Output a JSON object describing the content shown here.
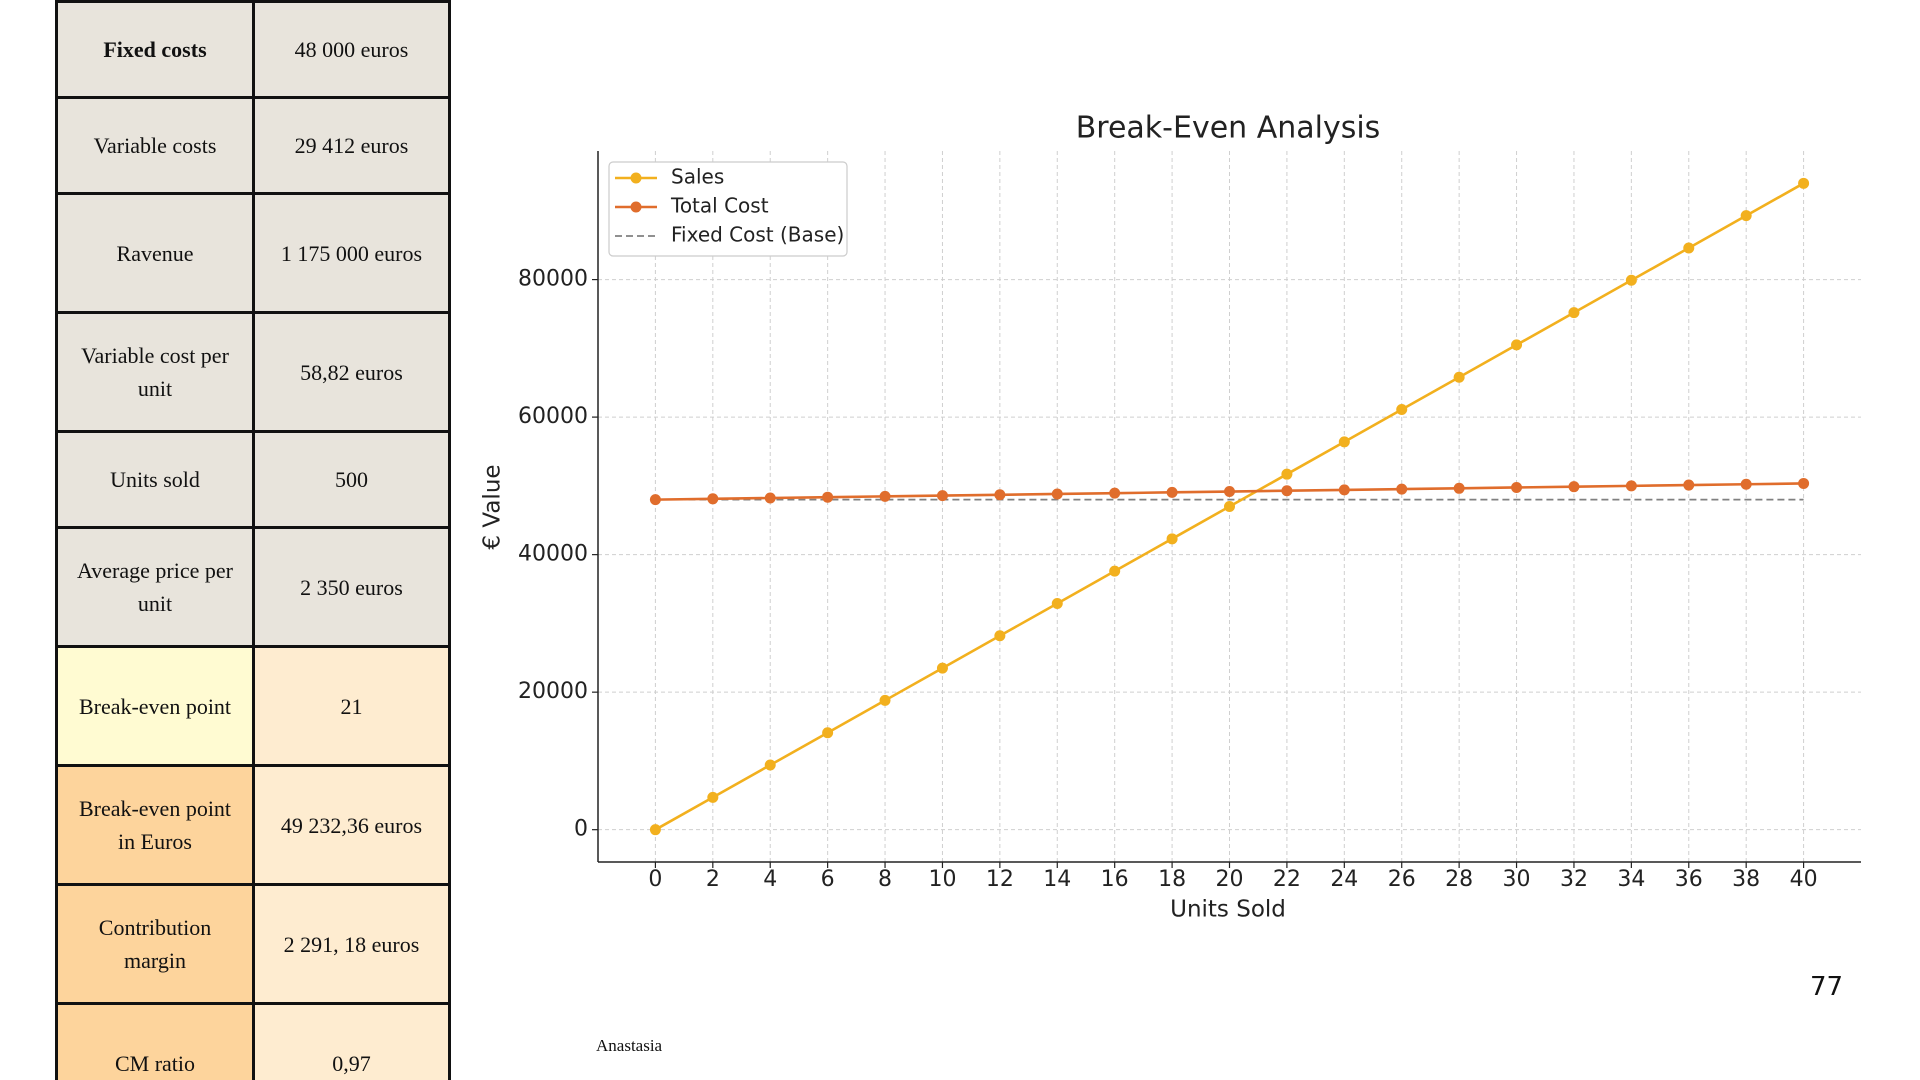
{
  "table": {
    "rows": [
      [
        "Fixed costs",
        "48 000 euros"
      ],
      [
        "Variable costs",
        "29 412 euros"
      ],
      [
        "Ravenue",
        "1 175 000 euros"
      ],
      [
        "Variable cost per unit",
        "58,82 euros"
      ],
      [
        "Units sold",
        "500"
      ],
      [
        "Average price per unit",
        "2 350 euros"
      ],
      [
        "Break-even point",
        "21"
      ],
      [
        "Break-even point in Euros",
        "49 232,36 euros"
      ],
      [
        "Contribution margin",
        "2 291, 18 euros"
      ],
      [
        "CM ratio",
        "0,97"
      ]
    ]
  },
  "chart_data": {
    "type": "line",
    "title": "Break-Even Analysis",
    "x_label": "Units Sold",
    "y_label": "€ Value",
    "x": [
      0,
      2,
      4,
      6,
      8,
      10,
      12,
      14,
      16,
      18,
      20,
      22,
      24,
      26,
      28,
      30,
      32,
      34,
      36,
      38,
      40
    ],
    "series": [
      {
        "name": "Sales",
        "color": "#f2b01e",
        "markers": true,
        "dashed": false,
        "values": [
          0,
          4700,
          9400,
          14100,
          18800,
          23500,
          28200,
          32900,
          37600,
          42300,
          47000,
          51700,
          56400,
          61100,
          65800,
          70500,
          75200,
          79900,
          84600,
          89300,
          94000
        ]
      },
      {
        "name": "Total Cost",
        "color": "#e06d2c",
        "markers": true,
        "dashed": false,
        "values": [
          48000,
          48118,
          48235,
          48353,
          48471,
          48588,
          48706,
          48823,
          48941,
          49059,
          49176,
          49294,
          49412,
          49529,
          49647,
          49765,
          49882,
          50000,
          50118,
          50235,
          50353
        ]
      },
      {
        "name": "Fixed Cost (Base)",
        "color": "#808080",
        "markers": false,
        "dashed": true,
        "values": [
          48000,
          48000,
          48000,
          48000,
          48000,
          48000,
          48000,
          48000,
          48000,
          48000,
          48000,
          48000,
          48000,
          48000,
          48000,
          48000,
          48000,
          48000,
          48000,
          48000,
          48000
        ]
      }
    ],
    "xlim": [
      -2,
      42
    ],
    "ylim": [
      -4700,
      98700
    ],
    "xticks": [
      0,
      2,
      4,
      6,
      8,
      10,
      12,
      14,
      16,
      18,
      20,
      22,
      24,
      26,
      28,
      30,
      32,
      34,
      36,
      38,
      40
    ],
    "yticks": [
      0,
      20000,
      40000,
      60000,
      80000
    ],
    "grid": true,
    "legend": "upper-left"
  },
  "footer": {
    "author": "Anastasia",
    "page_number": "77"
  }
}
